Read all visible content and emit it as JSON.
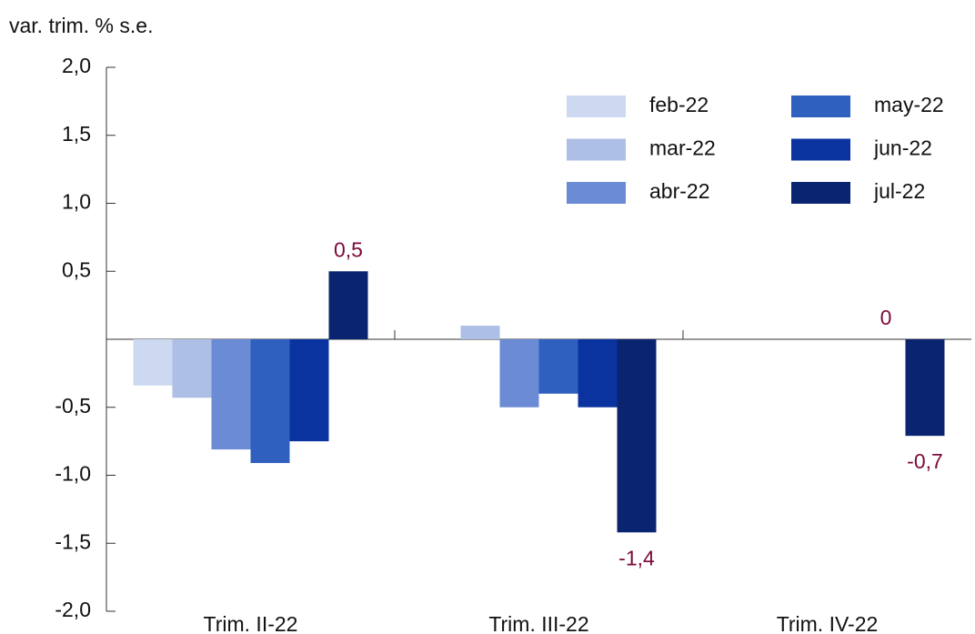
{
  "chart_data": {
    "type": "bar",
    "y_axis_label": "var. trim. % s.e.",
    "categories": [
      "Trim. II-22",
      "Trim. III-22",
      "Trim. IV-22"
    ],
    "series": [
      {
        "name": "feb-22",
        "color": "#cdd9f0",
        "values": [
          -0.34,
          null,
          null
        ]
      },
      {
        "name": "mar-22",
        "color": "#aebfe6",
        "values": [
          -0.43,
          0.1,
          null
        ]
      },
      {
        "name": "abr-22",
        "color": "#6b8bd4",
        "values": [
          -0.81,
          -0.5,
          null
        ]
      },
      {
        "name": "may-22",
        "color": "#2f5fbf",
        "values": [
          -0.91,
          -0.4,
          null
        ]
      },
      {
        "name": "jun-22",
        "color": "#0a33a0",
        "values": [
          -0.75,
          -0.5,
          0
        ],
        "value_labels": [
          null,
          null,
          "0"
        ]
      },
      {
        "name": "jul-22",
        "color": "#0b2470",
        "values": [
          0.5,
          -1.42,
          -0.71
        ],
        "value_labels": [
          "0,5",
          "-1,4",
          "-0,7"
        ]
      }
    ],
    "value_label_color": "#7b0a3a",
    "ylim": [
      -2.0,
      2.0
    ],
    "yticks": [
      {
        "value": 2.0,
        "label": "2,0"
      },
      {
        "value": 1.5,
        "label": "1,5"
      },
      {
        "value": 1.0,
        "label": "1,0"
      },
      {
        "value": 0.5,
        "label": "0,5"
      },
      {
        "value": -0.5,
        "label": "-0,5"
      },
      {
        "value": -1.0,
        "label": "-1,0"
      },
      {
        "value": -1.5,
        "label": "-1,5"
      },
      {
        "value": -2.0,
        "label": "-2,0"
      }
    ],
    "legend": "upper right"
  }
}
